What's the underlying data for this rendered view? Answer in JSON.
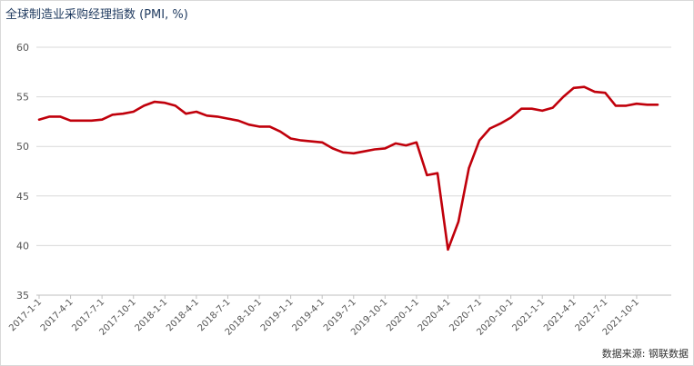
{
  "page": {
    "title": "全球制造业采购经理指数 (PMI, %)",
    "source": "数据来源: 钢联数据"
  },
  "chart_data": {
    "type": "line",
    "title": "全球制造业采购经理指数 (PMI, %)",
    "xlabel": "",
    "ylabel": "",
    "ylim": [
      35,
      60
    ],
    "yticks": [
      35,
      40,
      45,
      50,
      55,
      60
    ],
    "grid": "horizontal",
    "x": [
      "2017-1",
      "2017-2",
      "2017-3",
      "2017-4",
      "2017-5",
      "2017-6",
      "2017-7",
      "2017-8",
      "2017-9",
      "2017-10",
      "2017-11",
      "2017-12",
      "2018-1",
      "2018-2",
      "2018-3",
      "2018-4",
      "2018-5",
      "2018-6",
      "2018-7",
      "2018-8",
      "2018-9",
      "2018-10",
      "2018-11",
      "2018-12",
      "2019-1",
      "2019-2",
      "2019-3",
      "2019-4",
      "2019-5",
      "2019-6",
      "2019-7",
      "2019-8",
      "2019-9",
      "2019-10",
      "2019-11",
      "2019-12",
      "2020-1",
      "2020-2",
      "2020-3",
      "2020-4",
      "2020-5",
      "2020-6",
      "2020-7",
      "2020-8",
      "2020-9",
      "2020-10",
      "2020-11",
      "2020-12",
      "2021-1",
      "2021-2",
      "2021-3",
      "2021-4",
      "2021-5",
      "2021-6",
      "2021-7",
      "2021-8",
      "2021-9",
      "2021-10",
      "2021-11",
      "2021-12"
    ],
    "xtick_labels": [
      "2017-1-1",
      "2017-4-1",
      "2017-7-1",
      "2017-10-1",
      "2018-1-1",
      "2018-4-1",
      "2018-7-1",
      "2018-10-1",
      "2019-1-1",
      "2019-4-1",
      "2019-7-1",
      "2019-10-1",
      "2020-1-1",
      "2020-4-1",
      "2020-7-1",
      "2020-10-1",
      "2021-1-1",
      "2021-4-1",
      "2021-7-1",
      "2021-10-1"
    ],
    "series": [
      {
        "color": "#c0000b",
        "values": [
          52.7,
          53.0,
          53.0,
          52.6,
          52.6,
          52.6,
          52.7,
          53.2,
          53.3,
          53.5,
          54.1,
          54.5,
          54.4,
          54.1,
          53.3,
          53.5,
          53.1,
          53.0,
          52.8,
          52.6,
          52.2,
          52.0,
          52.0,
          51.5,
          50.8,
          50.6,
          50.5,
          50.4,
          49.8,
          49.4,
          49.3,
          49.5,
          49.7,
          49.8,
          50.3,
          50.1,
          50.4,
          47.1,
          47.3,
          39.6,
          42.4,
          47.8,
          50.6,
          51.8,
          52.3,
          52.9,
          53.8,
          53.8,
          53.6,
          53.9,
          55.0,
          55.9,
          56.0,
          55.5,
          55.4,
          54.1,
          54.1,
          54.3,
          54.2,
          54.2
        ]
      }
    ]
  }
}
